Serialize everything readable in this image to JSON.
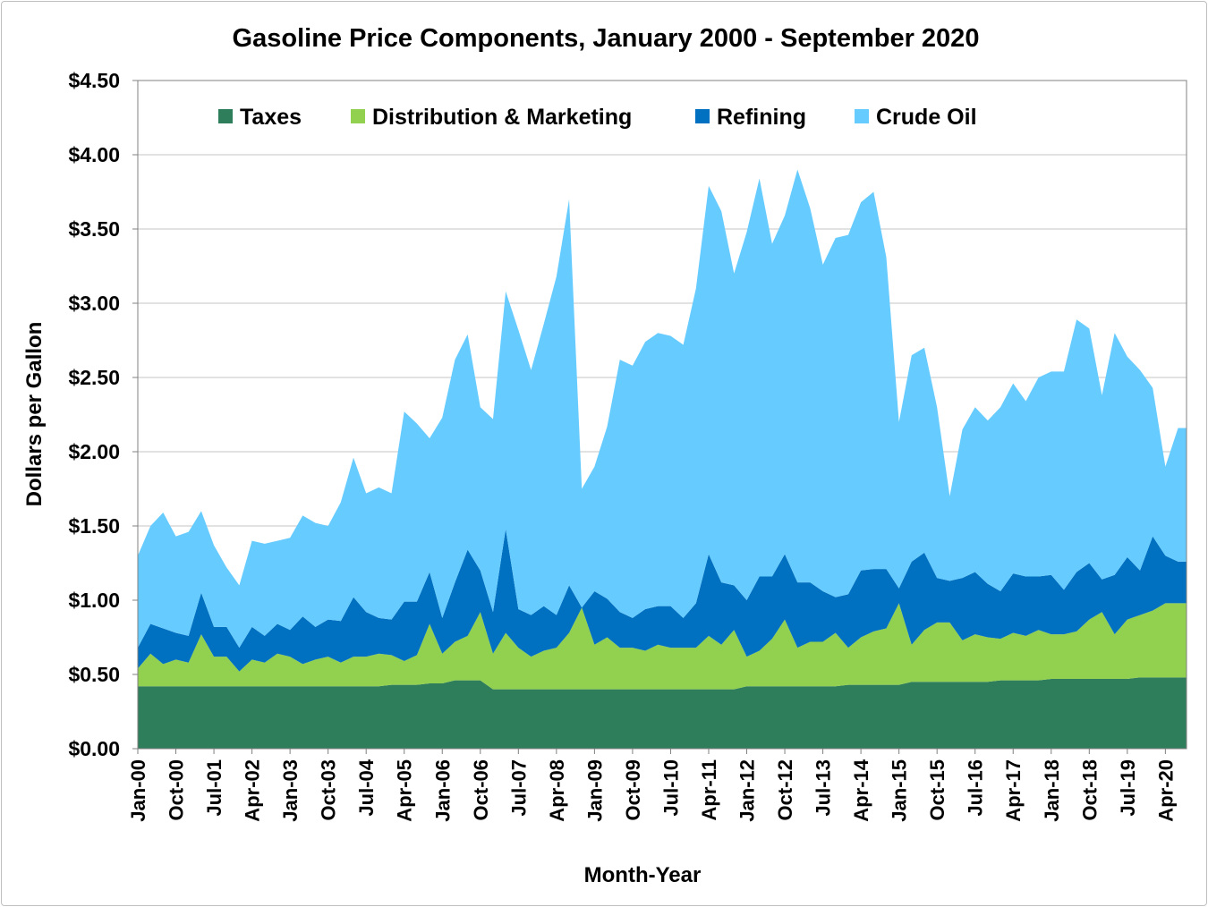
{
  "chart_data": {
    "type": "area",
    "stacked": true,
    "title": "Gasoline Price Components, January 2000 - September 2020",
    "xlabel": "Month-Year",
    "ylabel": "Dollars per Gallon",
    "ylim": [
      0,
      4.5
    ],
    "yticks": [
      "$0.00",
      "$0.50",
      "$1.00",
      "$1.50",
      "$2.00",
      "$2.50",
      "$3.00",
      "$3.50",
      "$4.00",
      "$4.50"
    ],
    "xticks": [
      "Jan-00",
      "Oct-00",
      "Jul-01",
      "Apr-02",
      "Jan-03",
      "Oct-03",
      "Jul-04",
      "Apr-05",
      "Jan-06",
      "Oct-06",
      "Jul-07",
      "Apr-08",
      "Jan-09",
      "Oct-09",
      "Jul-10",
      "Apr-11",
      "Jan-12",
      "Oct-12",
      "Jul-13",
      "Apr-14",
      "Jan-15",
      "Oct-15",
      "Jul-16",
      "Apr-17",
      "Jan-18",
      "Oct-18",
      "Jul-19",
      "Apr-20"
    ],
    "x_start": "Jan-00",
    "x_end": "Sep-20",
    "grid": "horizontal",
    "legend_position": "top",
    "note": "Series values are quarterly approximations read from the chart (Jan, Apr, Jul, Oct of each year, ending Jul-20); each series value is that component's own dollars per gallon, stacked in legend order.",
    "x": [
      "Jan-00",
      "Apr-00",
      "Jul-00",
      "Oct-00",
      "Jan-01",
      "Apr-01",
      "Jul-01",
      "Oct-01",
      "Jan-02",
      "Apr-02",
      "Jul-02",
      "Oct-02",
      "Jan-03",
      "Apr-03",
      "Jul-03",
      "Oct-03",
      "Jan-04",
      "Apr-04",
      "Jul-04",
      "Oct-04",
      "Jan-05",
      "Apr-05",
      "Jul-05",
      "Oct-05",
      "Jan-06",
      "Apr-06",
      "Jul-06",
      "Oct-06",
      "Jan-07",
      "Apr-07",
      "Jul-07",
      "Oct-07",
      "Jan-08",
      "Apr-08",
      "Jul-08",
      "Oct-08",
      "Jan-09",
      "Apr-09",
      "Jul-09",
      "Oct-09",
      "Jan-10",
      "Apr-10",
      "Jul-10",
      "Oct-10",
      "Jan-11",
      "Apr-11",
      "Jul-11",
      "Oct-11",
      "Jan-12",
      "Apr-12",
      "Jul-12",
      "Oct-12",
      "Jan-13",
      "Apr-13",
      "Jul-13",
      "Oct-13",
      "Jan-14",
      "Apr-14",
      "Jul-14",
      "Oct-14",
      "Jan-15",
      "Apr-15",
      "Jul-15",
      "Oct-15",
      "Jan-16",
      "Apr-16",
      "Jul-16",
      "Oct-16",
      "Jan-17",
      "Apr-17",
      "Jul-17",
      "Oct-17",
      "Jan-18",
      "Apr-18",
      "Jul-18",
      "Oct-18",
      "Jan-19",
      "Apr-19",
      "Jul-19",
      "Oct-19",
      "Jan-20",
      "Apr-20",
      "Jul-20"
    ],
    "series": [
      {
        "name": "Taxes",
        "color": "#2e7d5b",
        "values": [
          0.42,
          0.42,
          0.42,
          0.42,
          0.42,
          0.42,
          0.42,
          0.42,
          0.42,
          0.42,
          0.42,
          0.42,
          0.42,
          0.42,
          0.42,
          0.42,
          0.42,
          0.42,
          0.42,
          0.42,
          0.43,
          0.43,
          0.43,
          0.44,
          0.44,
          0.46,
          0.46,
          0.46,
          0.4,
          0.4,
          0.4,
          0.4,
          0.4,
          0.4,
          0.4,
          0.4,
          0.4,
          0.4,
          0.4,
          0.4,
          0.4,
          0.4,
          0.4,
          0.4,
          0.4,
          0.4,
          0.4,
          0.4,
          0.42,
          0.42,
          0.42,
          0.42,
          0.42,
          0.42,
          0.42,
          0.42,
          0.43,
          0.43,
          0.43,
          0.43,
          0.43,
          0.45,
          0.45,
          0.45,
          0.45,
          0.45,
          0.45,
          0.45,
          0.46,
          0.46,
          0.46,
          0.46,
          0.47,
          0.47,
          0.47,
          0.47,
          0.47,
          0.47,
          0.47,
          0.48,
          0.48,
          0.48,
          0.48
        ]
      },
      {
        "name": "Distribution & Marketing",
        "color": "#92d050",
        "values": [
          0.12,
          0.22,
          0.15,
          0.18,
          0.16,
          0.35,
          0.2,
          0.2,
          0.1,
          0.18,
          0.16,
          0.22,
          0.2,
          0.15,
          0.18,
          0.2,
          0.16,
          0.2,
          0.2,
          0.22,
          0.2,
          0.16,
          0.2,
          0.4,
          0.2,
          0.26,
          0.3,
          0.46,
          0.24,
          0.38,
          0.28,
          0.22,
          0.26,
          0.28,
          0.38,
          0.55,
          0.3,
          0.35,
          0.28,
          0.28,
          0.26,
          0.3,
          0.28,
          0.28,
          0.28,
          0.36,
          0.3,
          0.4,
          0.2,
          0.24,
          0.32,
          0.45,
          0.26,
          0.3,
          0.3,
          0.36,
          0.25,
          0.32,
          0.36,
          0.38,
          0.55,
          0.25,
          0.35,
          0.4,
          0.4,
          0.28,
          0.32,
          0.3,
          0.28,
          0.32,
          0.3,
          0.34,
          0.3,
          0.3,
          0.32,
          0.4,
          0.45,
          0.3,
          0.4,
          0.42,
          0.45,
          0.5,
          0.5
        ]
      },
      {
        "name": "Refining",
        "color": "#0070c0",
        "values": [
          0.14,
          0.2,
          0.24,
          0.18,
          0.18,
          0.28,
          0.2,
          0.2,
          0.16,
          0.22,
          0.18,
          0.2,
          0.18,
          0.32,
          0.22,
          0.25,
          0.28,
          0.4,
          0.3,
          0.24,
          0.24,
          0.4,
          0.36,
          0.35,
          0.24,
          0.4,
          0.58,
          0.28,
          0.28,
          0.7,
          0.26,
          0.28,
          0.3,
          0.22,
          0.32,
          0.0,
          0.36,
          0.26,
          0.24,
          0.2,
          0.28,
          0.26,
          0.28,
          0.2,
          0.3,
          0.55,
          0.42,
          0.3,
          0.38,
          0.5,
          0.42,
          0.44,
          0.44,
          0.4,
          0.34,
          0.24,
          0.36,
          0.45,
          0.42,
          0.4,
          0.1,
          0.56,
          0.52,
          0.3,
          0.28,
          0.42,
          0.42,
          0.36,
          0.32,
          0.4,
          0.4,
          0.36,
          0.4,
          0.3,
          0.4,
          0.38,
          0.22,
          0.4,
          0.42,
          0.3,
          0.5,
          0.32,
          0.28
        ]
      },
      {
        "name": "Crude Oil",
        "color": "#66cbff",
        "values": [
          0.62,
          0.66,
          0.78,
          0.65,
          0.7,
          0.55,
          0.55,
          0.4,
          0.42,
          0.58,
          0.62,
          0.56,
          0.62,
          0.68,
          0.7,
          0.63,
          0.8,
          0.94,
          0.8,
          0.88,
          0.85,
          1.28,
          1.2,
          0.9,
          1.35,
          1.5,
          1.45,
          1.1,
          1.3,
          1.6,
          1.88,
          1.65,
          1.9,
          2.28,
          2.6,
          0.8,
          0.84,
          1.16,
          1.7,
          1.7,
          1.8,
          1.84,
          1.82,
          1.84,
          2.12,
          2.48,
          2.5,
          2.1,
          2.48,
          2.68,
          2.24,
          2.28,
          2.78,
          2.52,
          2.2,
          2.42,
          2.42,
          2.48,
          2.54,
          2.1,
          1.12,
          1.39,
          1.38,
          1.15,
          0.57,
          1.0,
          1.11,
          1.1,
          1.24,
          1.28,
          1.18,
          1.34,
          1.37,
          1.47,
          1.7,
          1.58,
          1.24,
          1.63,
          1.35,
          1.35,
          1.0,
          0.6,
          0.9
        ]
      }
    ]
  }
}
